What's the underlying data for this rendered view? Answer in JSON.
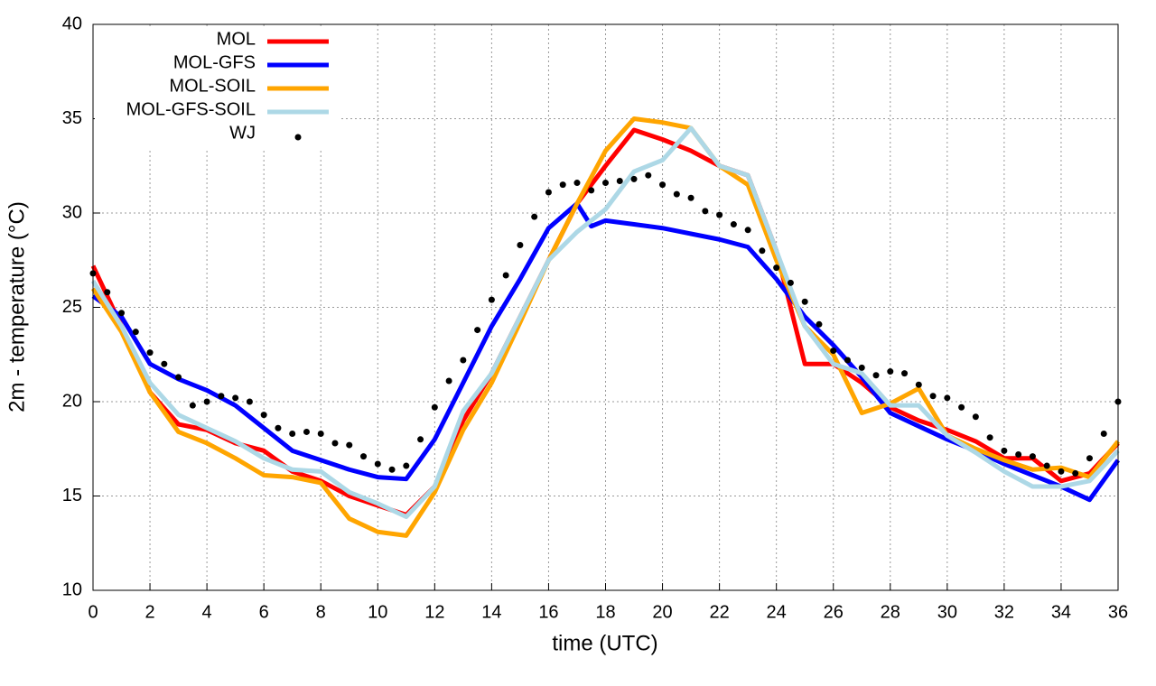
{
  "chart_data": {
    "type": "line",
    "xlabel": "time (UTC)",
    "ylabel": "2m - temperature (°C)",
    "xlim": [
      0,
      36
    ],
    "xticks": [
      0,
      2,
      4,
      6,
      8,
      10,
      12,
      14,
      16,
      18,
      20,
      22,
      24,
      26,
      28,
      30,
      32,
      34,
      36
    ],
    "ylim": [
      10,
      40
    ],
    "yticks": [
      10,
      15,
      20,
      25,
      30,
      35,
      40
    ],
    "grid": true,
    "legend": "top-left",
    "series": [
      {
        "name": "MOL",
        "color": "#ff0000",
        "mode": "lines",
        "x": [
          0,
          1,
          2,
          3,
          4,
          5,
          6,
          7,
          8,
          9,
          10,
          11,
          12,
          13,
          14,
          15,
          16,
          17,
          18,
          19,
          20,
          21,
          22,
          23,
          24,
          25,
          26,
          27,
          28,
          29,
          30,
          31,
          32,
          33,
          34,
          35,
          36
        ],
        "values": [
          27.2,
          24,
          20.5,
          18.8,
          18.5,
          17.8,
          17.4,
          16.3,
          15.8,
          15,
          14.5,
          14.0,
          15.5,
          19,
          21.5,
          24.5,
          27.5,
          30.5,
          32.5,
          34.4,
          33.9,
          33.3,
          32.5,
          32,
          28,
          22,
          22,
          21,
          19.7,
          19,
          18.5,
          17.9,
          17.0,
          17.0,
          15.8,
          16.2,
          17.8
        ]
      },
      {
        "name": "MOL-GFS",
        "color": "#0000ff",
        "mode": "lines",
        "x": [
          0,
          1,
          2,
          3,
          4,
          5,
          6,
          7,
          8,
          9,
          10,
          11,
          12,
          13,
          14,
          15,
          16,
          17,
          17.5,
          18,
          19,
          20,
          21,
          22,
          23,
          24,
          25,
          26,
          27,
          28,
          29,
          30,
          31,
          32,
          33,
          34,
          35,
          36
        ],
        "values": [
          25.6,
          24.5,
          22,
          21.2,
          20.6,
          19.8,
          18.6,
          17.4,
          16.9,
          16.4,
          16.0,
          15.9,
          18,
          21,
          24,
          26.5,
          29.2,
          30.5,
          29.3,
          29.6,
          29.4,
          29.2,
          28.9,
          28.6,
          28.2,
          26.5,
          24.5,
          23,
          21.3,
          19.4,
          18.7,
          18,
          17.4,
          16.7,
          16.1,
          15.5,
          14.8,
          16.9
        ]
      },
      {
        "name": "MOL-SOIL",
        "color": "#ffa500",
        "mode": "lines",
        "x": [
          0,
          1,
          2,
          3,
          4,
          5,
          6,
          7,
          8,
          9,
          10,
          11,
          12,
          13,
          14,
          15,
          16,
          17,
          18,
          19,
          20,
          21,
          22,
          23,
          24,
          25,
          26,
          27,
          28,
          29,
          30,
          31,
          32,
          33,
          34,
          35,
          36
        ],
        "values": [
          26,
          23.7,
          20.5,
          18.4,
          17.8,
          17,
          16.1,
          16.0,
          15.7,
          13.8,
          13.1,
          12.9,
          15.2,
          18.5,
          21,
          24.2,
          27.5,
          30.5,
          33.3,
          35,
          34.8,
          34.5,
          32.5,
          31.5,
          27.5,
          24,
          22.5,
          19.4,
          19.9,
          20.7,
          18.2,
          17.5,
          16.9,
          16.4,
          16.5,
          16.0,
          17.9
        ]
      },
      {
        "name": "MOL-GFS-SOIL",
        "color": "#add8e6",
        "mode": "lines",
        "x": [
          0,
          1,
          2,
          3,
          4,
          5,
          6,
          7,
          8,
          9,
          10,
          11,
          12,
          13,
          14,
          15,
          16,
          17,
          18,
          19,
          20,
          21,
          22,
          23,
          24,
          25,
          26,
          27,
          28,
          29,
          30,
          31,
          32,
          33,
          34,
          35,
          36
        ],
        "values": [
          26.4,
          24,
          21,
          19.3,
          18.6,
          17.9,
          17,
          16.4,
          16.3,
          15.2,
          14.6,
          13.9,
          15.5,
          19.5,
          21.5,
          24.5,
          27.5,
          29,
          30.2,
          32.2,
          32.8,
          34.5,
          32.5,
          32,
          28,
          24,
          22,
          21.5,
          19.8,
          19.8,
          18.2,
          17.3,
          16.3,
          15.5,
          15.5,
          15.8,
          17.4
        ]
      },
      {
        "name": "WJ",
        "color": "#000000",
        "mode": "points",
        "x": [
          0,
          0.5,
          1,
          1.5,
          2,
          2.5,
          3,
          3.5,
          4,
          4.5,
          5,
          5.5,
          6,
          6.5,
          7,
          7.5,
          8,
          8.5,
          9,
          9.5,
          10,
          10.5,
          11,
          11.5,
          12,
          12.5,
          13,
          13.5,
          14,
          14.5,
          15,
          15.5,
          16,
          16.5,
          17,
          17.5,
          18,
          18.5,
          19,
          19.5,
          20,
          20.5,
          21,
          21.5,
          22,
          22.5,
          23,
          23.5,
          24,
          24.5,
          25,
          25.5,
          26,
          26.5,
          27,
          27.5,
          28,
          28.5,
          29,
          29.5,
          30,
          30.5,
          31,
          31.5,
          32,
          32.5,
          33,
          33.5,
          34,
          34.5,
          35,
          35.5,
          36
        ],
        "values": [
          26.8,
          25.8,
          24.7,
          23.7,
          22.6,
          22.0,
          21.3,
          19.8,
          20.0,
          20.3,
          20.2,
          20.0,
          19.3,
          18.6,
          18.3,
          18.4,
          18.3,
          17.8,
          17.7,
          17.1,
          16.7,
          16.4,
          16.6,
          18.0,
          19.7,
          21.1,
          22.2,
          23.8,
          25.4,
          26.7,
          28.3,
          29.8,
          31.1,
          31.5,
          31.6,
          31.2,
          31.6,
          31.7,
          31.8,
          32.0,
          31.5,
          31.0,
          30.8,
          30.1,
          29.9,
          29.4,
          29.1,
          28.0,
          27.1,
          26.3,
          25.3,
          24.1,
          22.7,
          22.2,
          21.8,
          21.4,
          21.6,
          21.5,
          20.9,
          20.3,
          20.2,
          19.7,
          19.2,
          18.1,
          17.4,
          17.2,
          17.1,
          16.6,
          16.3,
          16.2,
          17.0,
          18.3,
          20.0
        ]
      }
    ]
  }
}
